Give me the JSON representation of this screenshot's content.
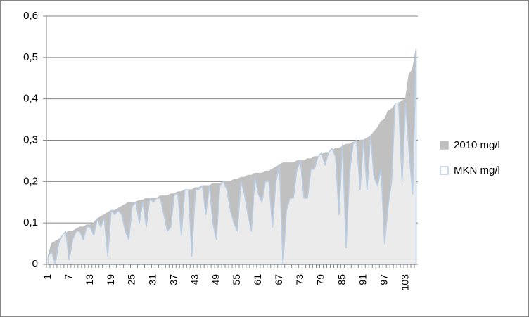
{
  "chart_data": {
    "type": "area",
    "categories": [
      "1",
      null,
      null,
      null,
      null,
      null,
      "7",
      null,
      null,
      null,
      null,
      null,
      "13",
      null,
      null,
      null,
      null,
      null,
      "19",
      null,
      null,
      null,
      null,
      null,
      "25",
      null,
      null,
      null,
      null,
      null,
      "31",
      null,
      null,
      null,
      null,
      null,
      "37",
      null,
      null,
      null,
      null,
      null,
      "43",
      null,
      null,
      null,
      null,
      null,
      "49",
      null,
      null,
      null,
      null,
      null,
      "55",
      null,
      null,
      null,
      null,
      null,
      "61",
      null,
      null,
      null,
      null,
      null,
      "67",
      null,
      null,
      null,
      null,
      null,
      "73",
      null,
      null,
      null,
      null,
      null,
      "79",
      null,
      null,
      null,
      null,
      null,
      "85",
      null,
      null,
      null,
      null,
      null,
      "91",
      null,
      null,
      null,
      null,
      null,
      "97",
      null,
      null,
      null,
      null,
      null,
      "103",
      null,
      null,
      null
    ],
    "series": [
      {
        "name": "2010 mg/l",
        "color": "#c0c0c0",
        "edge_color": "#c0c0c0",
        "values": [
          0.02,
          0.05,
          0.055,
          0.06,
          0.065,
          0.075,
          0.08,
          0.08,
          0.085,
          0.09,
          0.09,
          0.095,
          0.095,
          0.1,
          0.11,
          0.115,
          0.12,
          0.125,
          0.13,
          0.13,
          0.135,
          0.14,
          0.145,
          0.15,
          0.15,
          0.15,
          0.155,
          0.155,
          0.16,
          0.16,
          0.16,
          0.16,
          0.165,
          0.165,
          0.165,
          0.17,
          0.17,
          0.175,
          0.175,
          0.18,
          0.18,
          0.18,
          0.185,
          0.185,
          0.19,
          0.19,
          0.19,
          0.195,
          0.195,
          0.195,
          0.2,
          0.2,
          0.2,
          0.205,
          0.205,
          0.21,
          0.21,
          0.215,
          0.215,
          0.22,
          0.22,
          0.22,
          0.225,
          0.225,
          0.23,
          0.235,
          0.24,
          0.245,
          0.245,
          0.245,
          0.245,
          0.25,
          0.25,
          0.25,
          0.255,
          0.255,
          0.26,
          0.26,
          0.265,
          0.27,
          0.27,
          0.275,
          0.28,
          0.28,
          0.285,
          0.29,
          0.29,
          0.295,
          0.295,
          0.3,
          0.3,
          0.305,
          0.31,
          0.32,
          0.33,
          0.345,
          0.35,
          0.37,
          0.375,
          0.385,
          0.39,
          0.395,
          0.4,
          0.46,
          0.47,
          0.52
        ]
      },
      {
        "name": "MKN mg/l",
        "color": "#ebebeb",
        "edge_color": "#b9cde5",
        "values": [
          0.02,
          0.03,
          0.0,
          0.05,
          0.07,
          0.08,
          0.01,
          0.06,
          0.08,
          0.08,
          0.06,
          0.09,
          0.09,
          0.07,
          0.11,
          0.09,
          0.11,
          0.02,
          0.13,
          0.12,
          0.13,
          0.12,
          0.08,
          0.06,
          0.14,
          0.15,
          0.1,
          0.15,
          0.09,
          0.16,
          0.15,
          0.16,
          0.16,
          0.12,
          0.08,
          0.09,
          0.17,
          0.17,
          0.07,
          0.18,
          0.18,
          0.02,
          0.18,
          0.18,
          0.19,
          0.12,
          0.19,
          0.1,
          0.06,
          0.19,
          0.2,
          0.18,
          0.13,
          0.1,
          0.08,
          0.2,
          0.17,
          0.12,
          0.08,
          0.21,
          0.17,
          0.15,
          0.2,
          0.2,
          0.09,
          0.2,
          0.24,
          0.0,
          0.13,
          0.16,
          0.16,
          0.23,
          0.25,
          0.16,
          0.16,
          0.23,
          0.23,
          0.26,
          0.27,
          0.24,
          0.27,
          0.28,
          0.26,
          0.12,
          0.29,
          0.04,
          0.22,
          0.29,
          0.3,
          0.18,
          0.3,
          0.18,
          0.31,
          0.21,
          0.19,
          0.23,
          0.05,
          0.14,
          0.2,
          0.39,
          0.39,
          0.2,
          0.39,
          0.27,
          0.17,
          0.51
        ]
      }
    ],
    "ylim": [
      0,
      0.6
    ],
    "yticks": [
      0,
      {
        "value": 0.1,
        "label": "0,1"
      },
      {
        "value": 0.2,
        "label": "0,2"
      },
      {
        "value": 0.3,
        "label": "0,3"
      },
      {
        "value": 0.4,
        "label": "0,4"
      },
      {
        "value": 0.5,
        "label": "0,5"
      },
      {
        "value": 0.6,
        "label": "0,6"
      }
    ],
    "grid": true,
    "legend": "right"
  }
}
